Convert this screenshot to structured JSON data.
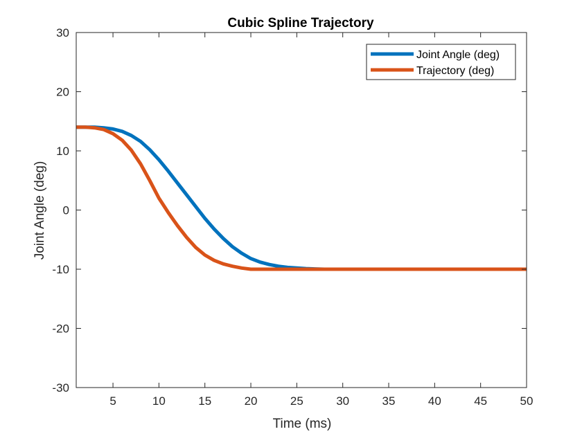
{
  "chart_data": {
    "type": "line",
    "title": "Cubic Spline Trajectory",
    "xlabel": "Time (ms)",
    "ylabel": "Joint Angle (deg)",
    "xlim": [
      1,
      50
    ],
    "ylim": [
      -30,
      30
    ],
    "xticks": [
      5,
      10,
      15,
      20,
      25,
      30,
      35,
      40,
      45,
      50
    ],
    "yticks": [
      -30,
      -20,
      -10,
      0,
      10,
      20,
      30
    ],
    "grid": false,
    "legend_position": "top-right",
    "series": [
      {
        "name": "Joint Angle (deg)",
        "color": "#0072BD",
        "x": [
          1,
          2,
          3,
          4,
          5,
          6,
          7,
          8,
          9,
          10,
          11,
          12,
          13,
          14,
          15,
          16,
          17,
          18,
          19,
          20,
          21,
          22,
          23,
          24,
          25,
          26,
          27,
          28,
          29,
          30,
          35,
          40,
          45,
          50
        ],
        "y": [
          14,
          14,
          14,
          13.9,
          13.7,
          13.3,
          12.6,
          11.6,
          10.2,
          8.5,
          6.6,
          4.6,
          2.6,
          0.6,
          -1.4,
          -3.2,
          -4.8,
          -6.2,
          -7.3,
          -8.2,
          -8.8,
          -9.2,
          -9.5,
          -9.7,
          -9.8,
          -9.9,
          -9.95,
          -10,
          -10,
          -10,
          -10,
          -10,
          -10,
          -10
        ]
      },
      {
        "name": "Trajectory (deg)",
        "color": "#D95319",
        "x": [
          1,
          2,
          3,
          4,
          5,
          6,
          7,
          8,
          9,
          10,
          11,
          12,
          13,
          14,
          15,
          16,
          17,
          18,
          19,
          20,
          21,
          25,
          30,
          35,
          40,
          45,
          50
        ],
        "y": [
          14,
          14,
          13.9,
          13.6,
          12.9,
          11.8,
          10.1,
          7.8,
          5.0,
          2.0,
          -0.4,
          -2.6,
          -4.6,
          -6.3,
          -7.6,
          -8.5,
          -9.1,
          -9.5,
          -9.8,
          -10,
          -10,
          -10,
          -10,
          -10,
          -10,
          -10,
          -10
        ]
      }
    ]
  }
}
